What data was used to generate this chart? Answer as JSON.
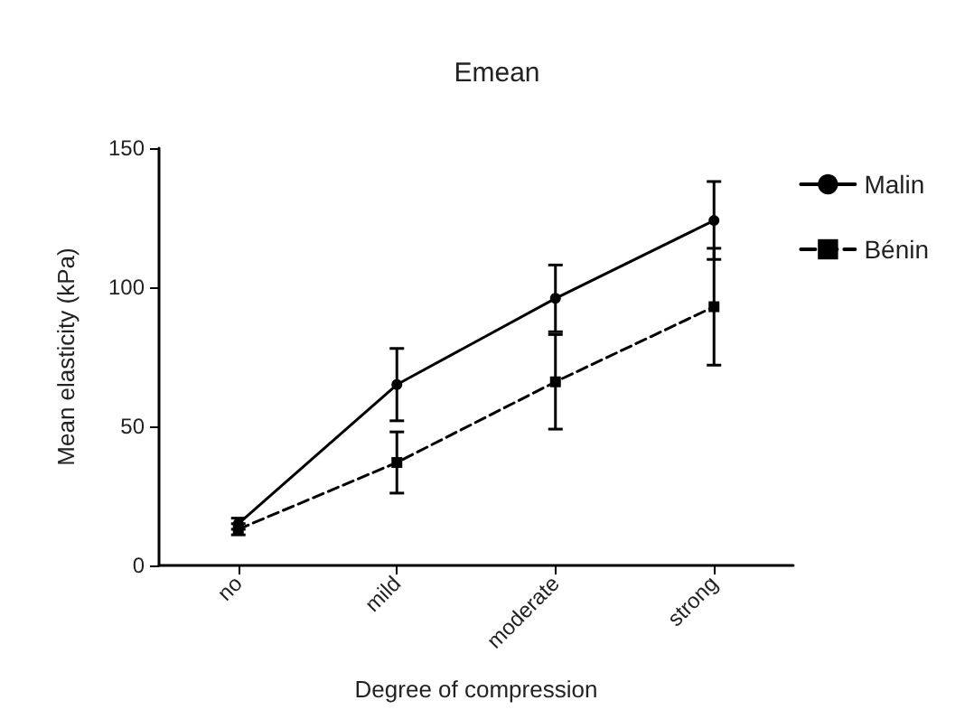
{
  "chart_data": {
    "type": "line",
    "title": "Emean",
    "xlabel": "Degree of compression",
    "ylabel": "Mean elasticity (kPa)",
    "categories": [
      "no",
      "mild",
      "moderate",
      "strong"
    ],
    "series": [
      {
        "name": "Malin",
        "color": "#000000",
        "values": [
          15,
          65,
          96,
          124
        ],
        "errors": [
          2,
          13,
          12,
          14
        ],
        "marker": "circle",
        "line_style": "solid"
      },
      {
        "name": "Bénin",
        "color": "#000000",
        "values": [
          13,
          37,
          66,
          93
        ],
        "errors": [
          2,
          11,
          17,
          21
        ],
        "marker": "square",
        "line_style": "dashed"
      }
    ],
    "ylim": [
      0,
      150
    ],
    "yticks": [
      0,
      50,
      100,
      150
    ],
    "grid": false,
    "legend": "right"
  }
}
